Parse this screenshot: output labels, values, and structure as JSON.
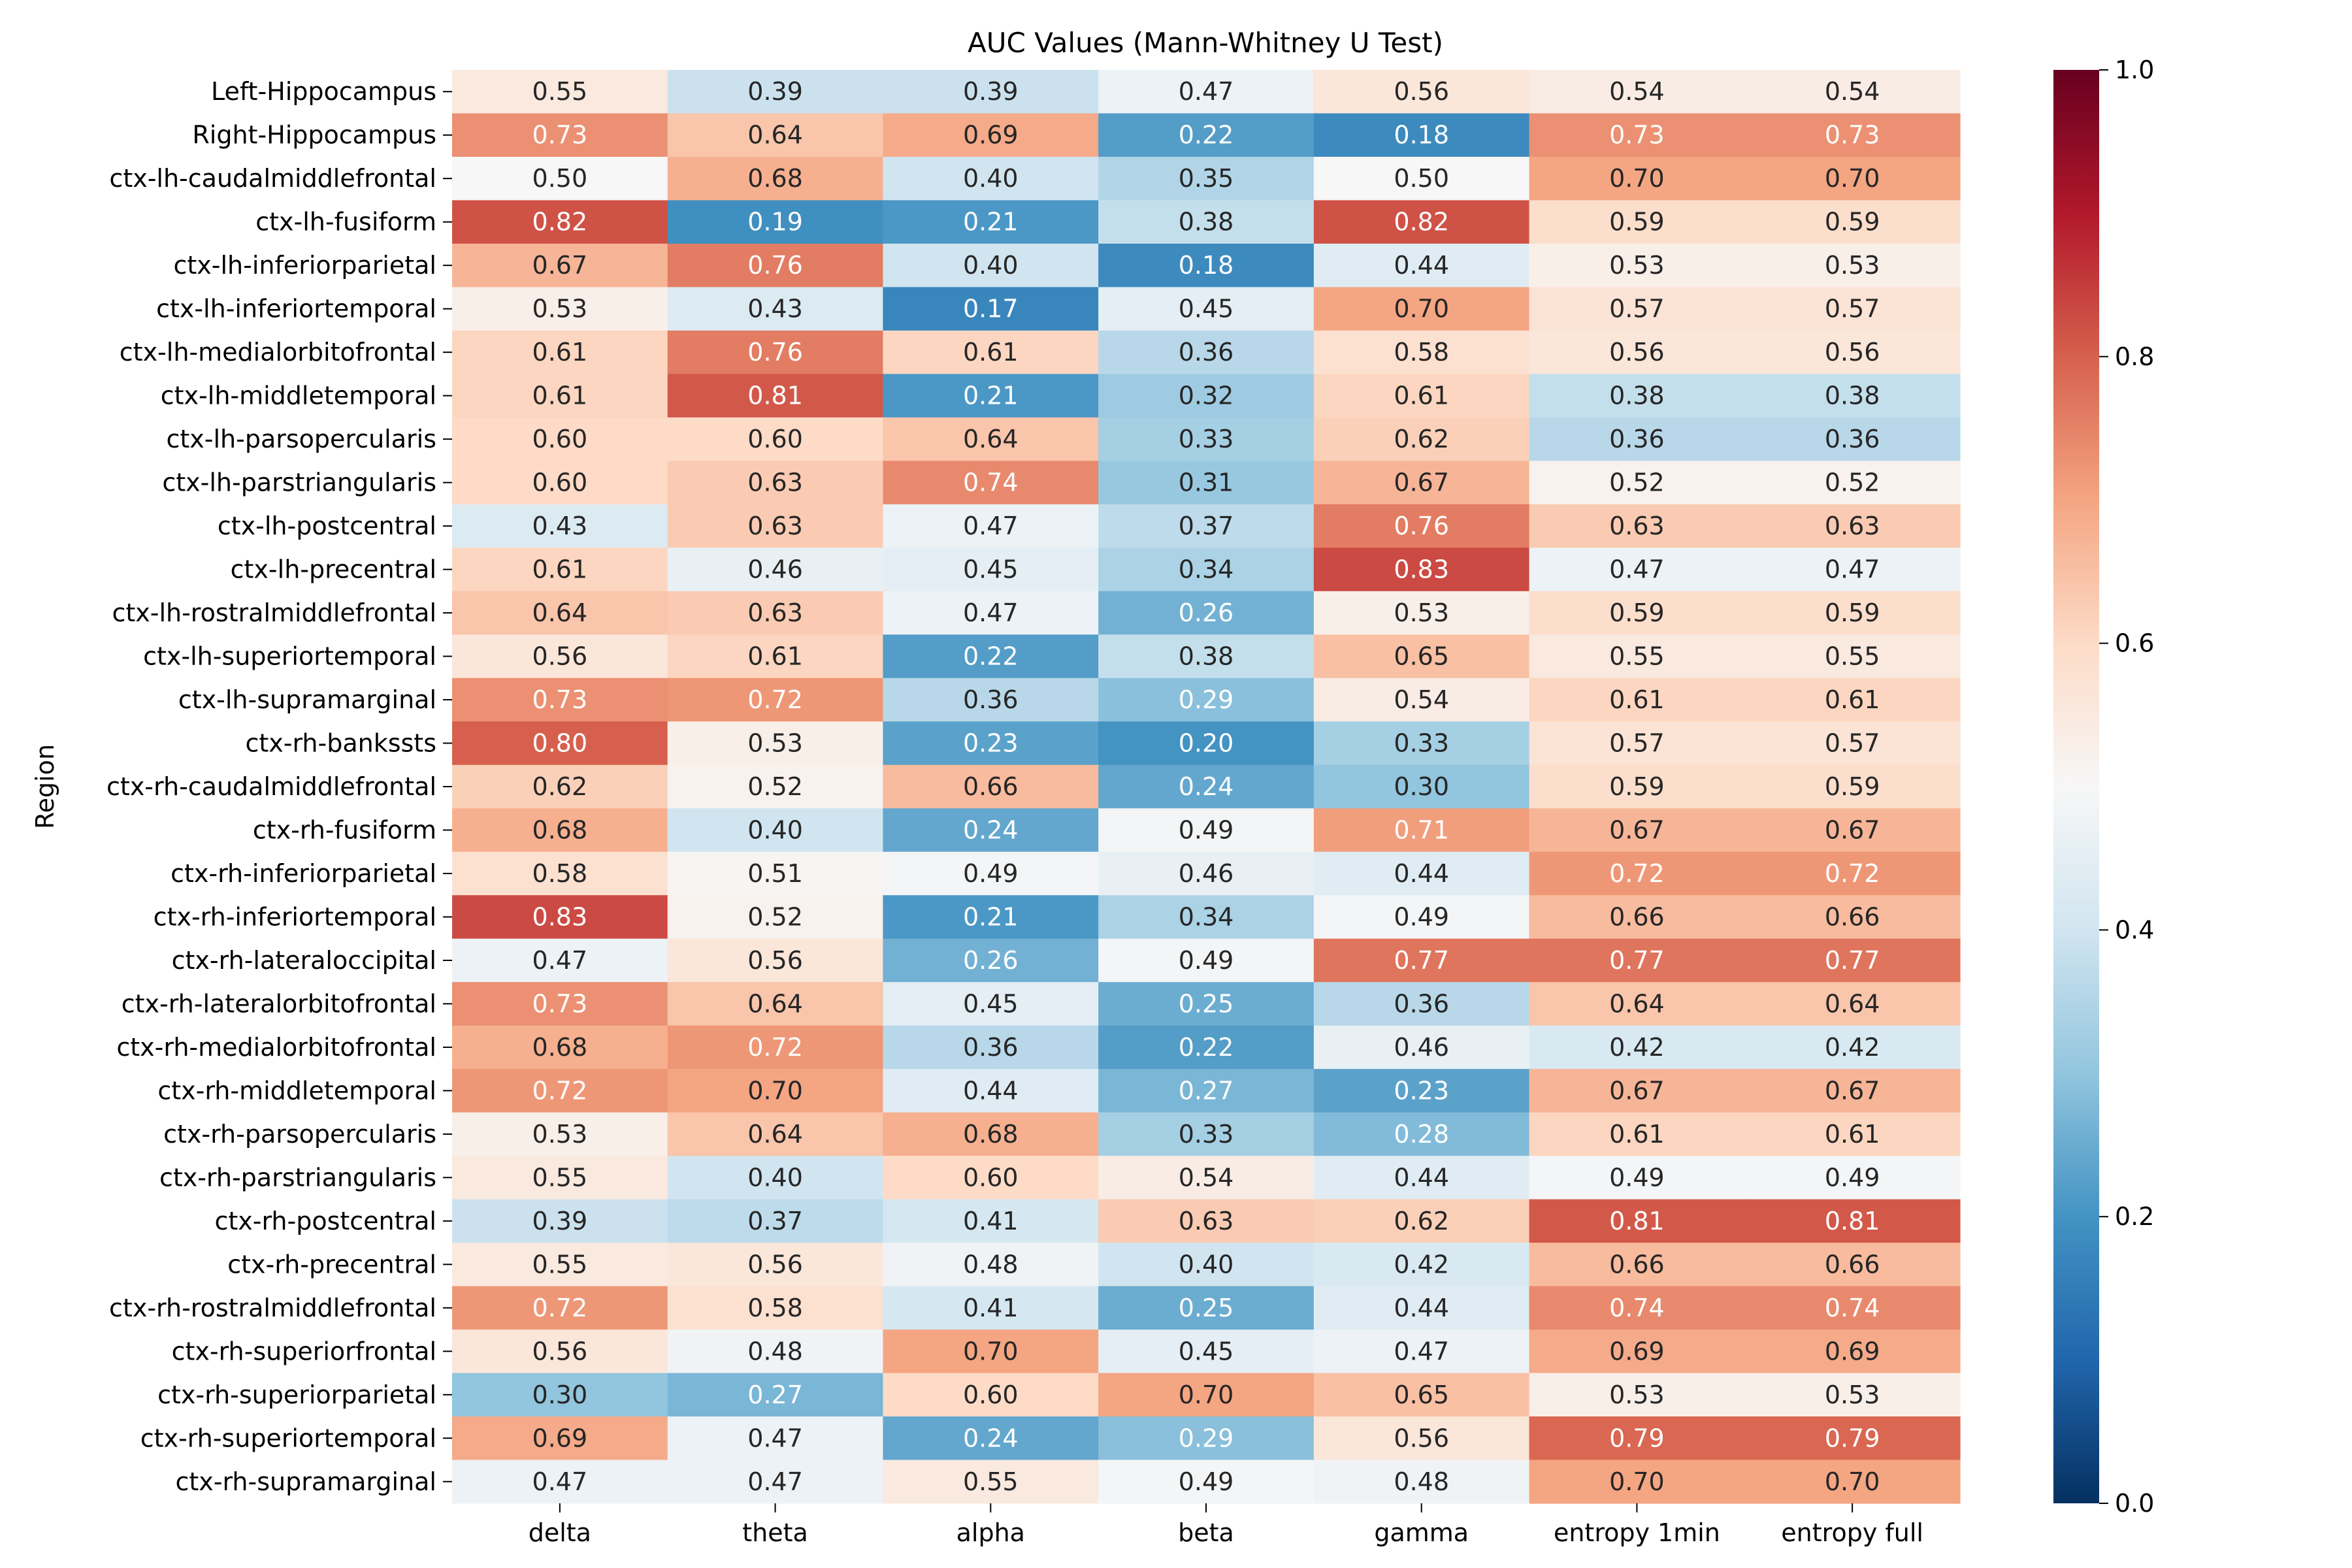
{
  "chart_data": {
    "type": "heatmap",
    "title": "AUC Values (Mann-Whitney U Test)",
    "xlabel": "",
    "ylabel": "Region",
    "columns": [
      "delta",
      "theta",
      "alpha",
      "beta",
      "gamma",
      "entropy 1min",
      "entropy full"
    ],
    "rows": [
      "Left-Hippocampus",
      "Right-Hippocampus",
      "ctx-lh-caudalmiddlefrontal",
      "ctx-lh-fusiform",
      "ctx-lh-inferiorparietal",
      "ctx-lh-inferiortemporal",
      "ctx-lh-medialorbitofrontal",
      "ctx-lh-middletemporal",
      "ctx-lh-parsopercularis",
      "ctx-lh-parstriangularis",
      "ctx-lh-postcentral",
      "ctx-lh-precentral",
      "ctx-lh-rostralmiddlefrontal",
      "ctx-lh-superiortemporal",
      "ctx-lh-supramarginal",
      "ctx-rh-bankssts",
      "ctx-rh-caudalmiddlefrontal",
      "ctx-rh-fusiform",
      "ctx-rh-inferiorparietal",
      "ctx-rh-inferiortemporal",
      "ctx-rh-lateraloccipital",
      "ctx-rh-lateralorbitofrontal",
      "ctx-rh-medialorbitofrontal",
      "ctx-rh-middletemporal",
      "ctx-rh-parsopercularis",
      "ctx-rh-parstriangularis",
      "ctx-rh-postcentral",
      "ctx-rh-precentral",
      "ctx-rh-rostralmiddlefrontal",
      "ctx-rh-superiorfrontal",
      "ctx-rh-superiorparietal",
      "ctx-rh-superiortemporal",
      "ctx-rh-supramarginal"
    ],
    "values": [
      [
        0.55,
        0.39,
        0.39,
        0.47,
        0.56,
        0.54,
        0.54
      ],
      [
        0.73,
        0.64,
        0.69,
        0.22,
        0.18,
        0.73,
        0.73
      ],
      [
        0.5,
        0.68,
        0.4,
        0.35,
        0.5,
        0.7,
        0.7
      ],
      [
        0.82,
        0.19,
        0.21,
        0.38,
        0.82,
        0.59,
        0.59
      ],
      [
        0.67,
        0.76,
        0.4,
        0.18,
        0.44,
        0.53,
        0.53
      ],
      [
        0.53,
        0.43,
        0.17,
        0.45,
        0.7,
        0.57,
        0.57
      ],
      [
        0.61,
        0.76,
        0.61,
        0.36,
        0.58,
        0.56,
        0.56
      ],
      [
        0.61,
        0.81,
        0.21,
        0.32,
        0.61,
        0.38,
        0.38
      ],
      [
        0.6,
        0.6,
        0.64,
        0.33,
        0.62,
        0.36,
        0.36
      ],
      [
        0.6,
        0.63,
        0.74,
        0.31,
        0.67,
        0.52,
        0.52
      ],
      [
        0.43,
        0.63,
        0.47,
        0.37,
        0.76,
        0.63,
        0.63
      ],
      [
        0.61,
        0.46,
        0.45,
        0.34,
        0.83,
        0.47,
        0.47
      ],
      [
        0.64,
        0.63,
        0.47,
        0.26,
        0.53,
        0.59,
        0.59
      ],
      [
        0.56,
        0.61,
        0.22,
        0.38,
        0.65,
        0.55,
        0.55
      ],
      [
        0.73,
        0.72,
        0.36,
        0.29,
        0.54,
        0.61,
        0.61
      ],
      [
        0.8,
        0.53,
        0.23,
        0.2,
        0.33,
        0.57,
        0.57
      ],
      [
        0.62,
        0.52,
        0.66,
        0.24,
        0.3,
        0.59,
        0.59
      ],
      [
        0.68,
        0.4,
        0.24,
        0.49,
        0.71,
        0.67,
        0.67
      ],
      [
        0.58,
        0.51,
        0.49,
        0.46,
        0.44,
        0.72,
        0.72
      ],
      [
        0.83,
        0.52,
        0.21,
        0.34,
        0.49,
        0.66,
        0.66
      ],
      [
        0.47,
        0.56,
        0.26,
        0.49,
        0.77,
        0.77,
        0.77
      ],
      [
        0.73,
        0.64,
        0.45,
        0.25,
        0.36,
        0.64,
        0.64
      ],
      [
        0.68,
        0.72,
        0.36,
        0.22,
        0.46,
        0.42,
        0.42
      ],
      [
        0.72,
        0.7,
        0.44,
        0.27,
        0.23,
        0.67,
        0.67
      ],
      [
        0.53,
        0.64,
        0.68,
        0.33,
        0.28,
        0.61,
        0.61
      ],
      [
        0.55,
        0.4,
        0.6,
        0.54,
        0.44,
        0.49,
        0.49
      ],
      [
        0.39,
        0.37,
        0.41,
        0.63,
        0.62,
        0.81,
        0.81
      ],
      [
        0.55,
        0.56,
        0.48,
        0.4,
        0.42,
        0.66,
        0.66
      ],
      [
        0.72,
        0.58,
        0.41,
        0.25,
        0.44,
        0.74,
        0.74
      ],
      [
        0.56,
        0.48,
        0.7,
        0.45,
        0.47,
        0.69,
        0.69
      ],
      [
        0.3,
        0.27,
        0.6,
        0.7,
        0.65,
        0.53,
        0.53
      ],
      [
        0.69,
        0.47,
        0.24,
        0.29,
        0.56,
        0.79,
        0.79
      ],
      [
        0.47,
        0.47,
        0.55,
        0.49,
        0.48,
        0.7,
        0.7
      ]
    ],
    "value_format": "0.00",
    "colormap": "RdBu_r",
    "vmin": 0.0,
    "vmax": 1.0,
    "colorbar_ticks": [
      0.0,
      0.2,
      0.4,
      0.6,
      0.8,
      1.0
    ],
    "colorbar_placement": "right",
    "grid": false
  }
}
